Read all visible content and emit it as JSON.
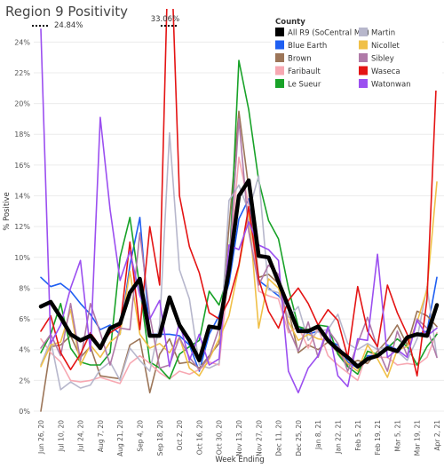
{
  "chart_data": {
    "type": "line",
    "title": "Region 9 Positivity",
    "xlabel": "Week Ending",
    "ylabel": "% Positive",
    "ylim": [
      0,
      25
    ],
    "yticks": [
      0,
      2,
      4,
      6,
      8,
      10,
      12,
      14,
      16,
      18,
      20,
      22,
      24
    ],
    "ytick_format": "%",
    "grid": "horizontal",
    "legend": {
      "title": "County",
      "position": "top-right"
    },
    "x": [
      "Jun 26, 20",
      "Jul 3, 20",
      "Jul 10, 20",
      "Jul 17, 20",
      "Jul 24, 20",
      "Jul 31, 20",
      "Aug 7, 20",
      "Aug 14, 20",
      "Aug 21, 20",
      "Aug 28, 20",
      "Sep 4, 20",
      "Sep 11, 20",
      "Sep 18, 20",
      "Sep 25, 20",
      "Oct 2, 20",
      "Oct 9, 20",
      "Oct 16, 20",
      "Oct 23, 20",
      "Oct 30, 20",
      "Nov 6, 20",
      "Nov 13, 20",
      "Nov 20, 20",
      "Nov 27, 20",
      "Dec 4, 20",
      "Dec 11, 20",
      "Dec 18, 20",
      "Dec 25, 20",
      "Jan 1, 21",
      "Jan 8, 21",
      "Jan 15, 21",
      "Jan 22, 21",
      "Jan 29, 21",
      "Feb 5, 21",
      "Feb 12, 21",
      "Feb 19, 21",
      "Feb 26, 21",
      "Mar 5, 21",
      "Mar 12, 21",
      "Mar 19, 21",
      "Mar 26, 21",
      "Apr 2, 21"
    ],
    "xtick_labels": [
      "Jun 26, 20",
      "Jul 10, 20",
      "Jul 24, 20",
      "Aug 7, 20",
      "Aug 21, 20",
      "Sep 4, 20",
      "Sep 18, 20",
      "Oct 2, 20",
      "Oct 16, 20",
      "Oct 30, 20",
      "Nov 13, 20",
      "Nov 27, 20",
      "Dec 11, 20",
      "Dec 25, 20",
      "Jan 8, 21",
      "Jan 22, 21",
      "Feb 5, 21",
      "Feb 19, 21",
      "Mar 5, 21",
      "Mar 19, 21",
      "Apr 2, 21"
    ],
    "annotations": [
      {
        "text": "24.84%",
        "x": "Jun 26, 20",
        "y": 24.84
      },
      {
        "text": "33.06%",
        "x": "Sep 25, 20",
        "y": 33.06
      }
    ],
    "series": [
      {
        "name": "All R9 (SoCentral MN)",
        "color": "#000000",
        "width": 4.5,
        "values": [
          6.8,
          7.1,
          6.1,
          5.0,
          4.6,
          4.9,
          4.1,
          5.4,
          5.7,
          7.7,
          8.6,
          4.9,
          4.9,
          7.4,
          5.6,
          4.6,
          3.3,
          5.5,
          5.4,
          9.2,
          14.0,
          15.0,
          10.1,
          10.0,
          8.4,
          6.8,
          5.2,
          5.2,
          5.5,
          4.6,
          4.0,
          3.5,
          2.9,
          3.4,
          3.6,
          4.1,
          3.9,
          4.8,
          5.0,
          4.9,
          6.9
        ]
      },
      {
        "name": "Blue Earth",
        "color": "#1f5ff2",
        "values": [
          8.7,
          8.1,
          8.3,
          7.8,
          7.0,
          6.3,
          5.3,
          5.6,
          5.0,
          9.5,
          12.6,
          5.0,
          5.0,
          5.0,
          4.9,
          4.3,
          2.6,
          5.0,
          6.2,
          8.3,
          12.5,
          13.8,
          8.5,
          8.0,
          7.5,
          6.8,
          5.5,
          5.0,
          5.2,
          4.6,
          4.3,
          3.2,
          2.8,
          3.6,
          3.6,
          4.3,
          4.0,
          4.8,
          5.0,
          5.2,
          8.7
        ]
      },
      {
        "name": "Brown",
        "color": "#9c7558",
        "values": [
          0,
          4.2,
          4.3,
          4.9,
          3.5,
          4.2,
          2.3,
          2.2,
          2.1,
          4.3,
          4.7,
          1.2,
          3.7,
          4.7,
          3.1,
          3.2,
          2.8,
          3.6,
          4.4,
          12.0,
          19.5,
          14.5,
          8.7,
          8.9,
          8.3,
          6.6,
          3.8,
          4.3,
          4.0,
          4.5,
          3.8,
          3.0,
          3.3,
          3.1,
          3.9,
          4.6,
          5.6,
          4.3,
          6.5,
          6.2,
          5.5
        ]
      },
      {
        "name": "Faribault",
        "color": "#f7a8b2",
        "values": [
          4.7,
          3.8,
          3.2,
          2.0,
          1.9,
          2.0,
          2.2,
          2.0,
          1.8,
          3.1,
          3.6,
          3.1,
          2.5,
          2.1,
          2.6,
          2.4,
          2.7,
          3.2,
          3.0,
          9.2,
          16.5,
          13.4,
          7.8,
          7.5,
          7.3,
          5.1,
          5.5,
          4.1,
          5.4,
          3.6,
          3.0,
          2.5,
          2.0,
          3.9,
          3.5,
          3.5,
          3.0,
          3.1,
          3.0,
          3.5,
          5.1
        ]
      },
      {
        "name": "Le Sueur",
        "color": "#18a228",
        "values": [
          3.8,
          5.0,
          7.0,
          4.1,
          3.2,
          3.0,
          3.0,
          3.8,
          10.0,
          12.6,
          8.0,
          3.2,
          2.8,
          2.1,
          3.7,
          4.2,
          4.6,
          7.8,
          6.9,
          9.0,
          22.8,
          19.6,
          15.0,
          12.4,
          11.2,
          8.0,
          5.5,
          5.3,
          5.6,
          5.5,
          3.7,
          2.9,
          2.4,
          3.9,
          3.7,
          4.1,
          4.7,
          4.2,
          3.0,
          4.2,
          5.0
        ]
      },
      {
        "name": "Martin",
        "color": "#b7b7cc",
        "values": [
          3.0,
          4.6,
          1.4,
          1.9,
          1.5,
          1.7,
          2.7,
          3.2,
          2.0,
          4.1,
          3.3,
          2.6,
          5.6,
          18.1,
          9.2,
          7.3,
          3.0,
          2.8,
          3.1,
          13.7,
          14.7,
          13.0,
          15.3,
          7.9,
          7.7,
          6.1,
          6.8,
          4.6,
          5.2,
          5.3,
          6.3,
          4.4,
          4.0,
          4.4,
          4.0,
          4.2,
          3.9,
          3.3,
          4.7,
          8.1,
          3.5
        ]
      },
      {
        "name": "Nicollet",
        "color": "#f0c048",
        "values": [
          2.9,
          4.3,
          4.5,
          6.6,
          3.0,
          4.3,
          3.5,
          4.5,
          5.0,
          9.1,
          5.0,
          4.1,
          4.4,
          3.8,
          4.8,
          2.8,
          2.3,
          3.4,
          4.7,
          6.2,
          9.4,
          13.0,
          5.4,
          8.6,
          8.0,
          5.8,
          4.6,
          5.0,
          4.7,
          4.6,
          3.9,
          3.1,
          2.6,
          4.3,
          3.4,
          2.2,
          4.0,
          4.2,
          5.8,
          7.9,
          14.9
        ]
      },
      {
        "name": "Sibley",
        "color": "#b07aa8",
        "values": [
          4.1,
          5.0,
          3.6,
          7.0,
          3.3,
          7.0,
          5.1,
          3.0,
          5.4,
          5.3,
          11.6,
          6.2,
          2.8,
          3.0,
          4.8,
          3.5,
          2.7,
          3.5,
          5.4,
          9.4,
          19.0,
          11.7,
          8.2,
          9.5,
          8.9,
          5.4,
          3.9,
          5.8,
          3.5,
          5.3,
          4.4,
          2.6,
          4.4,
          6.1,
          4.1,
          2.6,
          5.2,
          3.6,
          6.0,
          5.4,
          3.5
        ]
      },
      {
        "name": "Waseca",
        "color": "#e41414",
        "values": [
          5.2,
          6.2,
          3.8,
          2.7,
          3.7,
          5.1,
          4.2,
          5.1,
          5.5,
          11.0,
          5.3,
          12.0,
          8.2,
          33.06,
          14.0,
          10.7,
          9.0,
          6.4,
          6.0,
          7.2,
          9.5,
          13.3,
          8.6,
          6.5,
          5.4,
          7.2,
          8.0,
          7.0,
          5.6,
          6.6,
          5.9,
          3.5,
          8.1,
          5.2,
          4.2,
          8.2,
          6.4,
          5.0,
          2.3,
          7.3,
          22.3
        ]
      },
      {
        "name": "Watonwan",
        "color": "#9b4ff0",
        "values": [
          24.84,
          4.4,
          5.6,
          8.0,
          9.8,
          3.9,
          19.1,
          13.1,
          8.5,
          10.4,
          7.5,
          6.0,
          7.2,
          2.9,
          5.8,
          3.3,
          5.0,
          3.0,
          3.4,
          10.8,
          10.5,
          12.3,
          10.8,
          10.5,
          9.8,
          2.6,
          1.2,
          2.8,
          3.6,
          5.5,
          2.3,
          1.6,
          4.7,
          4.6,
          10.2,
          3.5,
          4.0,
          3.5,
          5.9,
          4.9,
          5.4
        ]
      }
    ]
  }
}
